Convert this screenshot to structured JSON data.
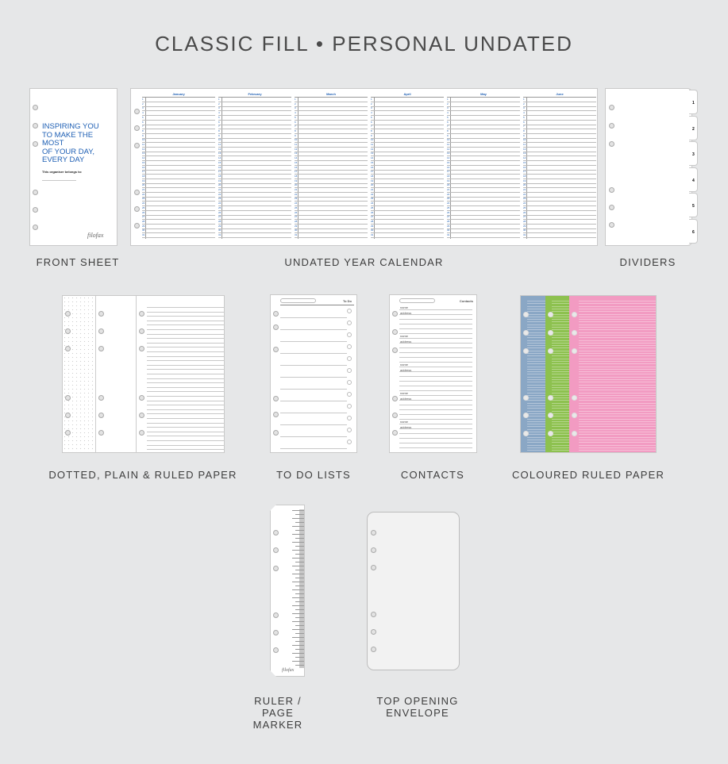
{
  "title": "CLASSIC FILL • PERSONAL UNDATED",
  "brand": "filofax",
  "front_sheet": {
    "label": "FRONT SHEET",
    "headline": [
      "INSPIRING YOU",
      "TO MAKE THE MOST",
      "OF YOUR DAY,",
      "EVERY DAY"
    ],
    "belongs": "This organiser belongs to:",
    "accent": "#1e5fb4"
  },
  "calendar": {
    "label": "UNDATED YEAR CALENDAR",
    "months": [
      "January",
      "February",
      "March",
      "April",
      "May",
      "June"
    ]
  },
  "dividers": {
    "label": "DIVIDERS",
    "tabs": [
      "1",
      "2",
      "3",
      "4",
      "5",
      "6"
    ]
  },
  "paper": {
    "label": "DOTTED, PLAIN & RULED PAPER"
  },
  "todo": {
    "label": "TO DO LISTS",
    "heading": "To Do"
  },
  "contacts": {
    "label": "CONTACTS",
    "heading": "Contacts",
    "fields": [
      "name",
      "address"
    ]
  },
  "coloured": {
    "label": "COLOURED RULED PAPER",
    "colors": [
      "#8aa7c5",
      "#8dc14f",
      "#f29bc2"
    ]
  },
  "ruler": {
    "label": "RULER / PAGE MARKER"
  },
  "envelope": {
    "label": "TOP OPENING ENVELOPE"
  }
}
